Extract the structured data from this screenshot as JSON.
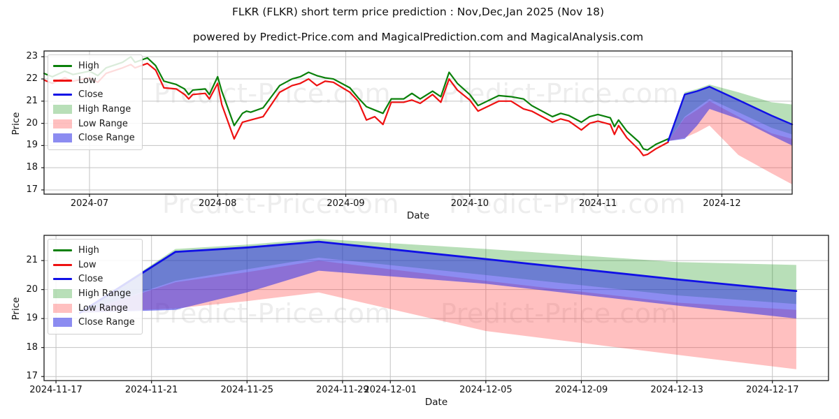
{
  "title": "FLKR (FLKR) short term price prediction : Nov,Dec,Jan 2025 (Nov 18)",
  "subtitle": "powered by Predict-Price.com and MagicalPrediction.com and MagicalAnalysis.com",
  "watermark_text": "Predict-Price.com",
  "colors": {
    "high_line": "#0a800a",
    "low_line": "#ee1111",
    "close_line": "#1010e6",
    "high_band": "rgba(0,140,0,0.28)",
    "low_band": "rgba(255,60,60,0.32)",
    "close_band": "rgba(45,45,230,0.55)",
    "grid": "#c3c3c3",
    "spine": "#1a1a1a"
  },
  "legend": {
    "position": "upper left",
    "items": [
      {
        "label": "High",
        "type": "line",
        "color": "#0a800a"
      },
      {
        "label": "Low",
        "type": "line",
        "color": "#ee1111"
      },
      {
        "label": "Close",
        "type": "line",
        "color": "#1010e6"
      },
      {
        "label": "High Range",
        "type": "band",
        "color": "rgba(0,140,0,0.28)"
      },
      {
        "label": "Low Range",
        "type": "band",
        "color": "rgba(255,60,60,0.32)"
      },
      {
        "label": "Close Range",
        "type": "band",
        "color": "rgba(45,45,230,0.55)"
      }
    ]
  },
  "chart_data": {
    "type": "line",
    "x_axis_label": "Date",
    "y_axis_label": "Price",
    "historical": {
      "dates": [
        "2024-06-20",
        "2024-06-22",
        "2024-06-25",
        "2024-06-27",
        "2024-07-01",
        "2024-07-03",
        "2024-07-05",
        "2024-07-09",
        "2024-07-11",
        "2024-07-12",
        "2024-07-15",
        "2024-07-17",
        "2024-07-19",
        "2024-07-22",
        "2024-07-24",
        "2024-07-25",
        "2024-07-26",
        "2024-07-29",
        "2024-07-30",
        "2024-08-01",
        "2024-08-02",
        "2024-08-05",
        "2024-08-07",
        "2024-08-08",
        "2024-08-09",
        "2024-08-12",
        "2024-08-14",
        "2024-08-16",
        "2024-08-19",
        "2024-08-21",
        "2024-08-23",
        "2024-08-25",
        "2024-08-27",
        "2024-08-29",
        "2024-09-02",
        "2024-09-04",
        "2024-09-06",
        "2024-09-08",
        "2024-09-10",
        "2024-09-12",
        "2024-09-15",
        "2024-09-17",
        "2024-09-19",
        "2024-09-22",
        "2024-09-24",
        "2024-09-26",
        "2024-09-28",
        "2024-10-01",
        "2024-10-03",
        "2024-10-08",
        "2024-10-11",
        "2024-10-14",
        "2024-10-16",
        "2024-10-18",
        "2024-10-21",
        "2024-10-23",
        "2024-10-25",
        "2024-10-28",
        "2024-10-30",
        "2024-11-01",
        "2024-11-04",
        "2024-11-05",
        "2024-11-06",
        "2024-11-08",
        "2024-11-11",
        "2024-11-12",
        "2024-11-13",
        "2024-11-15",
        "2024-11-18"
      ],
      "high": [
        22.25,
        22.1,
        22.35,
        22.2,
        22.35,
        22.15,
        22.5,
        22.75,
        23.0,
        22.75,
        22.95,
        22.6,
        21.9,
        21.75,
        21.55,
        21.3,
        21.5,
        21.55,
        21.3,
        22.1,
        21.45,
        19.9,
        20.45,
        20.55,
        20.5,
        20.7,
        21.2,
        21.7,
        22.0,
        22.1,
        22.3,
        22.15,
        22.05,
        22.0,
        21.6,
        21.15,
        20.75,
        20.6,
        20.45,
        21.1,
        21.1,
        21.35,
        21.1,
        21.45,
        21.2,
        22.3,
        21.8,
        21.3,
        20.8,
        21.25,
        21.2,
        21.1,
        20.8,
        20.6,
        20.3,
        20.45,
        20.35,
        20.05,
        20.3,
        20.4,
        20.25,
        19.85,
        20.15,
        19.65,
        19.15,
        18.85,
        18.8,
        19.05,
        19.3
      ],
      "low": [
        21.95,
        21.8,
        22.05,
        21.9,
        22.05,
        21.85,
        22.25,
        22.5,
        22.65,
        22.5,
        22.7,
        22.4,
        21.6,
        21.55,
        21.3,
        21.1,
        21.3,
        21.35,
        21.1,
        21.8,
        20.85,
        19.3,
        20.05,
        20.1,
        20.15,
        20.3,
        20.85,
        21.4,
        21.7,
        21.8,
        22.0,
        21.7,
        21.9,
        21.85,
        21.4,
        21.0,
        20.15,
        20.3,
        19.95,
        20.95,
        20.95,
        21.05,
        20.9,
        21.3,
        20.95,
        22.0,
        21.5,
        21.05,
        20.55,
        21.0,
        21.0,
        20.65,
        20.55,
        20.35,
        20.05,
        20.2,
        20.1,
        19.7,
        20.0,
        20.1,
        19.95,
        19.5,
        19.9,
        19.35,
        18.8,
        18.55,
        18.6,
        18.85,
        19.15
      ]
    },
    "prediction": {
      "dates": [
        "2024-11-18",
        "2024-11-22",
        "2024-11-25",
        "2024-11-28",
        "2024-12-05",
        "2024-12-13",
        "2024-12-18"
      ],
      "close": [
        19.2,
        21.3,
        21.45,
        21.65,
        21.05,
        20.35,
        19.95
      ],
      "close_upper": [
        19.2,
        21.3,
        21.45,
        21.65,
        21.05,
        20.35,
        19.95
      ],
      "close_lower": [
        19.2,
        19.3,
        19.9,
        20.65,
        20.2,
        19.45,
        19.0
      ],
      "high_upper": [
        19.2,
        21.4,
        21.55,
        21.75,
        21.4,
        20.95,
        20.85
      ],
      "high_lower": [
        19.2,
        20.3,
        20.7,
        21.1,
        20.5,
        19.8,
        19.5
      ],
      "low_upper": [
        19.2,
        20.25,
        20.6,
        21.0,
        20.3,
        19.55,
        19.3
      ],
      "low_lower": [
        19.2,
        19.35,
        19.6,
        19.9,
        18.57,
        17.75,
        17.25
      ]
    },
    "charts": [
      {
        "name": "full-history-with-prediction",
        "x_ticks": [
          {
            "date": "2024-07-01",
            "label": "2024-07"
          },
          {
            "date": "2024-08-01",
            "label": "2024-08"
          },
          {
            "date": "2024-09-01",
            "label": "2024-09"
          },
          {
            "date": "2024-10-01",
            "label": "2024-10"
          },
          {
            "date": "2024-11-01",
            "label": "2024-11"
          },
          {
            "date": "2024-12-01",
            "label": "2024-12"
          }
        ],
        "y_ticks": [
          17,
          18,
          19,
          20,
          21,
          22,
          23
        ],
        "xlim_days": [
          19,
          200
        ],
        "ylim": [
          16.81,
          23.26
        ],
        "grid": true,
        "show_historical": true
      },
      {
        "name": "prediction-zoom",
        "x_ticks": [
          {
            "date": "2024-11-17",
            "label": "2024-11-17"
          },
          {
            "date": "2024-11-21",
            "label": "2024-11-21"
          },
          {
            "date": "2024-11-25",
            "label": "2024-11-25"
          },
          {
            "date": "2024-11-29",
            "label": "2024-11-29"
          },
          {
            "date": "2024-12-01",
            "label": "2024-12-01"
          },
          {
            "date": "2024-12-05",
            "label": "2024-12-05"
          },
          {
            "date": "2024-12-09",
            "label": "2024-12-09"
          },
          {
            "date": "2024-12-13",
            "label": "2024-12-13"
          },
          {
            "date": "2024-12-17",
            "label": "2024-12-17"
          }
        ],
        "y_ticks": [
          17,
          18,
          19,
          20,
          21
        ],
        "xlim_days": [
          168.5,
          201.35
        ],
        "ylim": [
          16.86,
          21.87
        ],
        "grid": true,
        "show_historical": false
      }
    ]
  }
}
